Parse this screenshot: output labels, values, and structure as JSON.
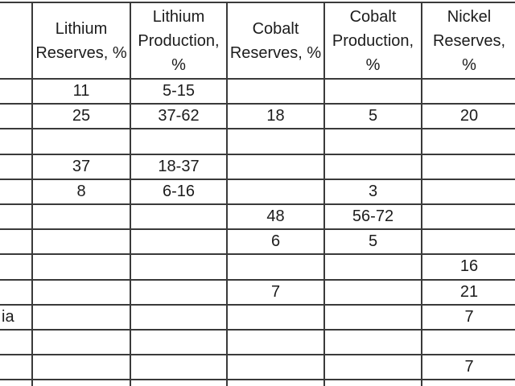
{
  "table": {
    "header": [
      "",
      "Lithium Reserves, %",
      "Lithium Production, %",
      "Cobalt Reserves, %",
      "Cobalt Production, %",
      "Nickel Reserves, %"
    ],
    "rows": [
      [
        "",
        "11",
        "5-15",
        "",
        "",
        ""
      ],
      [
        "",
        "25",
        "37-62",
        "18",
        "5",
        "20"
      ],
      [
        "",
        "",
        "",
        "",
        "",
        ""
      ],
      [
        "",
        "37",
        "18-37",
        "",
        "",
        ""
      ],
      [
        "",
        "8",
        "6-16",
        "",
        "3",
        ""
      ],
      [
        "",
        "",
        "",
        "48",
        "56-72",
        ""
      ],
      [
        "",
        "",
        "",
        "6",
        "5",
        ""
      ],
      [
        "",
        "",
        "",
        "",
        "",
        "16"
      ],
      [
        "",
        "",
        "",
        "7",
        "",
        "21"
      ],
      [
        "ia",
        "",
        "",
        "",
        "",
        "7"
      ],
      [
        "",
        "",
        "",
        "",
        "",
        ""
      ],
      [
        "",
        "",
        "",
        "",
        "",
        "7"
      ],
      [
        "",
        "",
        "",
        "",
        "",
        ""
      ]
    ]
  },
  "colors": {
    "border": "#3a3a3a",
    "text": "#1c1c1c",
    "background": "#ffffff"
  }
}
